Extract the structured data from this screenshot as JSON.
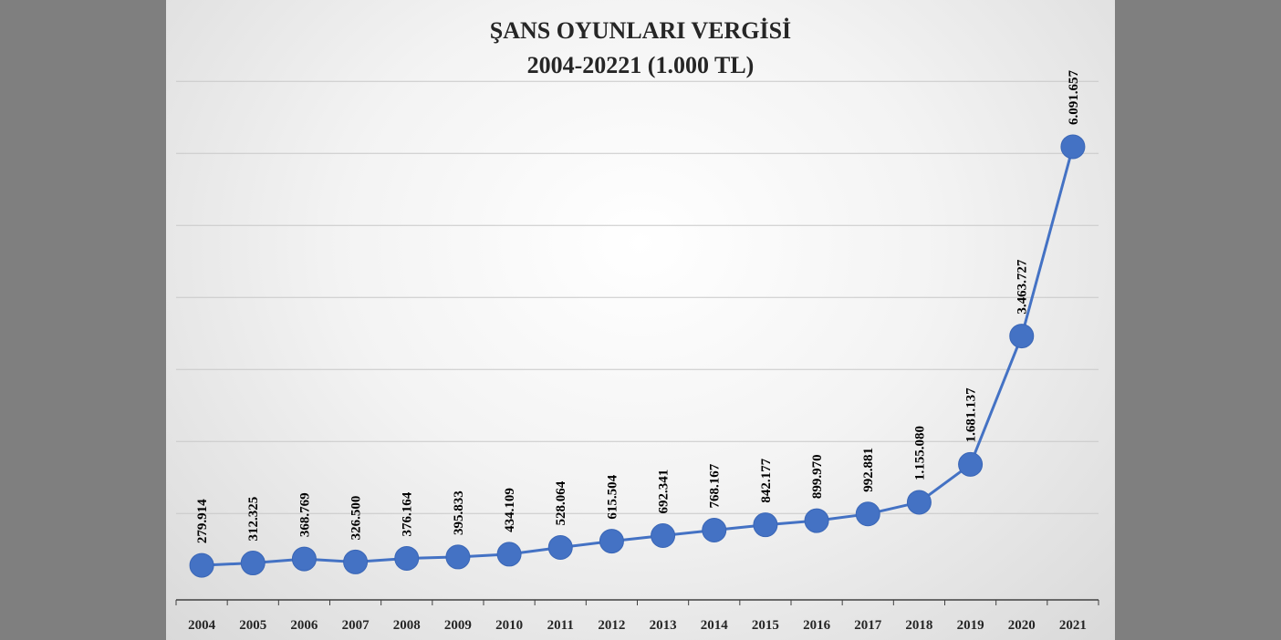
{
  "chart_data": {
    "type": "line",
    "title": "ŞANS OYUNLARI VERGİSİ",
    "subtitle": "2004-20221 (1.000 TL)",
    "categories": [
      "2004",
      "2005",
      "2006",
      "2007",
      "2008",
      "2009",
      "2010",
      "2011",
      "2012",
      "2013",
      "2014",
      "2015",
      "2016",
      "2017",
      "2018",
      "2019",
      "2020",
      "2021"
    ],
    "series": [
      {
        "values": [
          279914,
          312325,
          368769,
          326500,
          376164,
          395833,
          434109,
          528064,
          615504,
          692341,
          768167,
          842177,
          899970,
          992881,
          1155080,
          1681137,
          3463727,
          6091657
        ],
        "labels": [
          "279.914",
          "312.325",
          "368.769",
          "326.500",
          "376.164",
          "395.833",
          "434.109",
          "528.064",
          "615.504",
          "692.341",
          "768.167",
          "842.177",
          "899.970",
          "992.881",
          "1.155.080",
          "1.681.137",
          "3.463.727",
          "6.091.657"
        ]
      }
    ],
    "ylim": [
      -200000,
      7000000
    ],
    "grid": true,
    "legend": "none",
    "colors": {
      "line": "#4472c4",
      "grid": "#c8c8c8",
      "axis": "#404040"
    }
  }
}
